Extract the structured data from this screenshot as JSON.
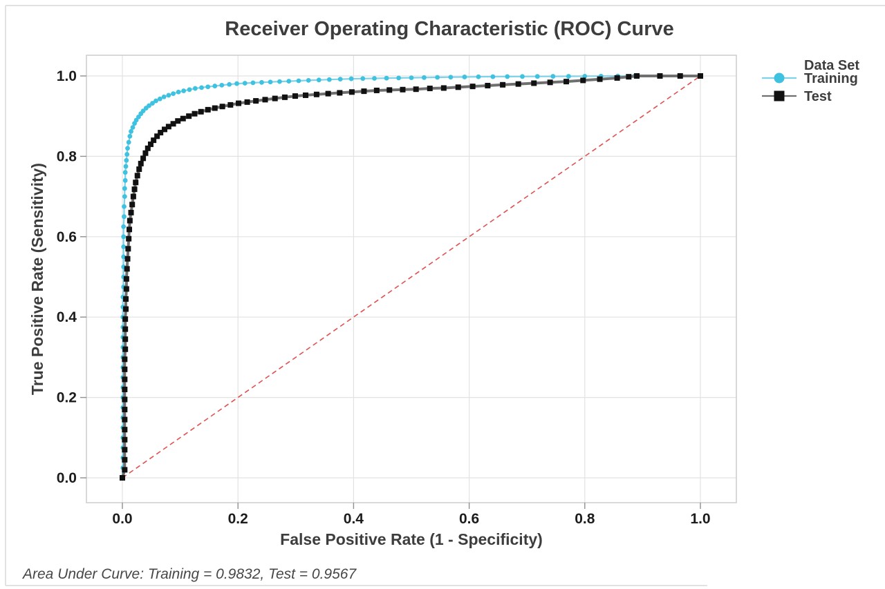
{
  "title": "Receiver Operating Characteristic (ROC) Curve",
  "footer": "Area Under Curve: Training = 0.9832, Test = 0.9567",
  "chart_data": {
    "type": "line",
    "title": "Receiver Operating Characteristic (ROC) Curve",
    "xlabel": "False Positive Rate (1 - Specificity)",
    "ylabel": "True Positive Rate (Sensitivity)",
    "xlim": [
      0,
      1
    ],
    "ylim": [
      0,
      1
    ],
    "grid": true,
    "x_tick_labels": [
      "0.0",
      "0.2",
      "0.4",
      "0.6",
      "0.8",
      "1.0"
    ],
    "y_tick_labels": [
      "0.0",
      "0.2",
      "0.4",
      "0.6",
      "0.8",
      "1.0"
    ],
    "legend": {
      "title": "Data Set",
      "position": "top-right-outside"
    },
    "reference_line": {
      "name": "chance-diagonal",
      "from": [
        0,
        0
      ],
      "to": [
        1,
        1
      ],
      "color": "#e05050",
      "style": "dashed"
    },
    "annotation": "Area Under Curve: Training = 0.9832, Test = 0.9567",
    "series": [
      {
        "name": "Training",
        "auc": 0.9832,
        "marker": "circle",
        "marker_size": 3.4,
        "line_width": 2.2,
        "color": "#3fc1e0",
        "line_color": "#7dd2ea",
        "points": [
          [
            0.0,
            0.0
          ],
          [
            0.001,
            0.025
          ],
          [
            0.001,
            0.05
          ],
          [
            0.001,
            0.075
          ],
          [
            0.001,
            0.1
          ],
          [
            0.001,
            0.125
          ],
          [
            0.001,
            0.15
          ],
          [
            0.001,
            0.175
          ],
          [
            0.001,
            0.2
          ],
          [
            0.001,
            0.225
          ],
          [
            0.001,
            0.25
          ],
          [
            0.001,
            0.275
          ],
          [
            0.001,
            0.3
          ],
          [
            0.001,
            0.325
          ],
          [
            0.001,
            0.35
          ],
          [
            0.001,
            0.375
          ],
          [
            0.001,
            0.4
          ],
          [
            0.001,
            0.425
          ],
          [
            0.001,
            0.45
          ],
          [
            0.002,
            0.475
          ],
          [
            0.002,
            0.5
          ],
          [
            0.002,
            0.525
          ],
          [
            0.002,
            0.55
          ],
          [
            0.002,
            0.575
          ],
          [
            0.002,
            0.6
          ],
          [
            0.002,
            0.625
          ],
          [
            0.003,
            0.65
          ],
          [
            0.003,
            0.675
          ],
          [
            0.004,
            0.7
          ],
          [
            0.004,
            0.72
          ],
          [
            0.005,
            0.74
          ],
          [
            0.005,
            0.76
          ],
          [
            0.006,
            0.775
          ],
          [
            0.007,
            0.79
          ],
          [
            0.008,
            0.805
          ],
          [
            0.009,
            0.82
          ],
          [
            0.011,
            0.835
          ],
          [
            0.013,
            0.85
          ],
          [
            0.015,
            0.862
          ],
          [
            0.018,
            0.872
          ],
          [
            0.021,
            0.882
          ],
          [
            0.024,
            0.89
          ],
          [
            0.028,
            0.898
          ],
          [
            0.032,
            0.906
          ],
          [
            0.036,
            0.913
          ],
          [
            0.041,
            0.92
          ],
          [
            0.046,
            0.926
          ],
          [
            0.052,
            0.932
          ],
          [
            0.058,
            0.938
          ],
          [
            0.065,
            0.943
          ],
          [
            0.072,
            0.948
          ],
          [
            0.08,
            0.952
          ],
          [
            0.088,
            0.956
          ],
          [
            0.097,
            0.96
          ],
          [
            0.106,
            0.963
          ],
          [
            0.116,
            0.966
          ],
          [
            0.126,
            0.969
          ],
          [
            0.137,
            0.971
          ],
          [
            0.148,
            0.973
          ],
          [
            0.16,
            0.975
          ],
          [
            0.172,
            0.977
          ],
          [
            0.185,
            0.979
          ],
          [
            0.198,
            0.981
          ],
          [
            0.212,
            0.982
          ],
          [
            0.226,
            0.983
          ],
          [
            0.241,
            0.984
          ],
          [
            0.256,
            0.985
          ],
          [
            0.272,
            0.986
          ],
          [
            0.288,
            0.987
          ],
          [
            0.305,
            0.988
          ],
          [
            0.322,
            0.989
          ],
          [
            0.34,
            0.99
          ],
          [
            0.358,
            0.991
          ],
          [
            0.377,
            0.992
          ],
          [
            0.396,
            0.993
          ],
          [
            0.416,
            0.9935
          ],
          [
            0.436,
            0.994
          ],
          [
            0.457,
            0.9945
          ],
          [
            0.478,
            0.995
          ],
          [
            0.5,
            0.9955
          ],
          [
            0.522,
            0.996
          ],
          [
            0.545,
            0.9965
          ],
          [
            0.568,
            0.997
          ],
          [
            0.592,
            0.9975
          ],
          [
            0.616,
            0.998
          ],
          [
            0.641,
            0.9982
          ],
          [
            0.666,
            0.9984
          ],
          [
            0.692,
            0.9986
          ],
          [
            0.718,
            0.9988
          ],
          [
            0.745,
            0.999
          ],
          [
            0.772,
            0.9992
          ],
          [
            0.8,
            0.9994
          ],
          [
            0.828,
            0.9996
          ],
          [
            0.857,
            0.9998
          ],
          [
            0.886,
            1.0
          ],
          [
            1.0,
            1.0
          ]
        ]
      },
      {
        "name": "Test",
        "auc": 0.9567,
        "marker": "square",
        "marker_size": 8,
        "line_width": 4,
        "color": "#111111",
        "line_color": "#6f6f6f",
        "points": [
          [
            0.0,
            0.0
          ],
          [
            0.004,
            0.02
          ],
          [
            0.004,
            0.045
          ],
          [
            0.004,
            0.07
          ],
          [
            0.004,
            0.095
          ],
          [
            0.004,
            0.12
          ],
          [
            0.004,
            0.145
          ],
          [
            0.004,
            0.17
          ],
          [
            0.004,
            0.195
          ],
          [
            0.004,
            0.22
          ],
          [
            0.004,
            0.245
          ],
          [
            0.004,
            0.27
          ],
          [
            0.004,
            0.295
          ],
          [
            0.005,
            0.32
          ],
          [
            0.005,
            0.345
          ],
          [
            0.005,
            0.37
          ],
          [
            0.005,
            0.395
          ],
          [
            0.006,
            0.42
          ],
          [
            0.006,
            0.445
          ],
          [
            0.007,
            0.47
          ],
          [
            0.007,
            0.495
          ],
          [
            0.008,
            0.52
          ],
          [
            0.009,
            0.545
          ],
          [
            0.01,
            0.57
          ],
          [
            0.011,
            0.595
          ],
          [
            0.012,
            0.618
          ],
          [
            0.013,
            0.64
          ],
          [
            0.015,
            0.66
          ],
          [
            0.017,
            0.68
          ],
          [
            0.019,
            0.7
          ],
          [
            0.021,
            0.718
          ],
          [
            0.023,
            0.735
          ],
          [
            0.026,
            0.752
          ],
          [
            0.029,
            0.768
          ],
          [
            0.032,
            0.782
          ],
          [
            0.036,
            0.795
          ],
          [
            0.04,
            0.808
          ],
          [
            0.044,
            0.82
          ],
          [
            0.049,
            0.83
          ],
          [
            0.054,
            0.84
          ],
          [
            0.06,
            0.85
          ],
          [
            0.066,
            0.859
          ],
          [
            0.073,
            0.867
          ],
          [
            0.08,
            0.874
          ],
          [
            0.088,
            0.881
          ],
          [
            0.096,
            0.888
          ],
          [
            0.105,
            0.894
          ],
          [
            0.115,
            0.9
          ],
          [
            0.125,
            0.906
          ],
          [
            0.136,
            0.911
          ],
          [
            0.148,
            0.916
          ],
          [
            0.16,
            0.92
          ],
          [
            0.173,
            0.924
          ],
          [
            0.187,
            0.928
          ],
          [
            0.201,
            0.932
          ],
          [
            0.216,
            0.935
          ],
          [
            0.231,
            0.938
          ],
          [
            0.247,
            0.941
          ],
          [
            0.264,
            0.944
          ],
          [
            0.281,
            0.947
          ],
          [
            0.299,
            0.95
          ],
          [
            0.317,
            0.952
          ],
          [
            0.336,
            0.954
          ],
          [
            0.356,
            0.956
          ],
          [
            0.376,
            0.958
          ],
          [
            0.397,
            0.96
          ],
          [
            0.418,
            0.962
          ],
          [
            0.44,
            0.964
          ],
          [
            0.462,
            0.965
          ],
          [
            0.485,
            0.966
          ],
          [
            0.508,
            0.967
          ],
          [
            0.532,
            0.969
          ],
          [
            0.556,
            0.97
          ],
          [
            0.581,
            0.972
          ],
          [
            0.606,
            0.974
          ],
          [
            0.632,
            0.976
          ],
          [
            0.658,
            0.978
          ],
          [
            0.685,
            0.98
          ],
          [
            0.712,
            0.982
          ],
          [
            0.74,
            0.984
          ],
          [
            0.768,
            0.986
          ],
          [
            0.797,
            0.989
          ],
          [
            0.826,
            0.992
          ],
          [
            0.856,
            0.995
          ],
          [
            0.876,
            0.998
          ],
          [
            0.89,
            1.0
          ],
          [
            0.93,
            1.0
          ],
          [
            0.965,
            1.0
          ],
          [
            1.0,
            1.0
          ]
        ]
      }
    ]
  },
  "style_colors": {
    "grid": "#e2e2e2",
    "frame": "#c9c9c9",
    "tick": "#8f8f8f",
    "figure_border": "#d8d8d8"
  }
}
